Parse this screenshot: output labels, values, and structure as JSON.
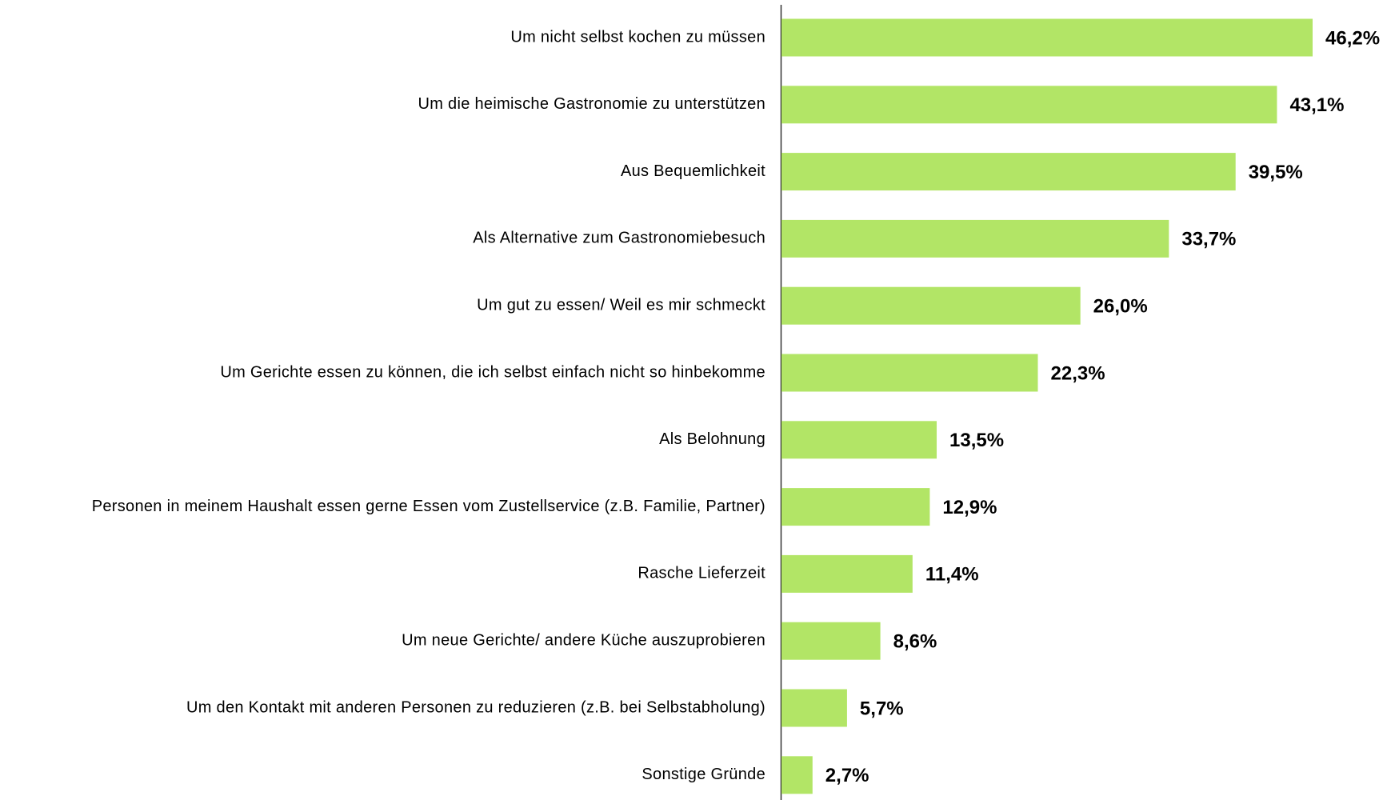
{
  "chart_data": {
    "type": "barh",
    "color": "#b2e566",
    "categories": [
      "Um nicht selbst kochen zu müssen",
      "Um die heimische Gastronomie zu unterstützen",
      "Aus Bequemlichkeit",
      "Als Alternative zum Gastronomiebesuch",
      "Um gut zu essen/ Weil es mir schmeckt",
      "Um Gerichte essen zu können, die ich selbst einfach nicht so hinbekomme",
      "Als Belohnung",
      "Personen in meinem Haushalt essen gerne Essen vom Zustellservice (z.B. Familie, Partner)",
      "Rasche Lieferzeit",
      "Um neue Gerichte/ andere Küche auszuprobieren",
      "Um den Kontakt mit anderen Personen zu reduzieren (z.B. bei Selbstabholung)",
      "Sonstige Gründe"
    ],
    "values": [
      46.2,
      43.1,
      39.5,
      33.7,
      26.0,
      22.3,
      13.5,
      12.9,
      11.4,
      8.6,
      5.7,
      2.7
    ],
    "value_labels": [
      "46,2%",
      "43,1%",
      "39,5%",
      "33,7%",
      "26,0%",
      "22,3%",
      "13,5%",
      "12,9%",
      "11,4%",
      "8,6%",
      "5,7%",
      "2,7%"
    ]
  }
}
